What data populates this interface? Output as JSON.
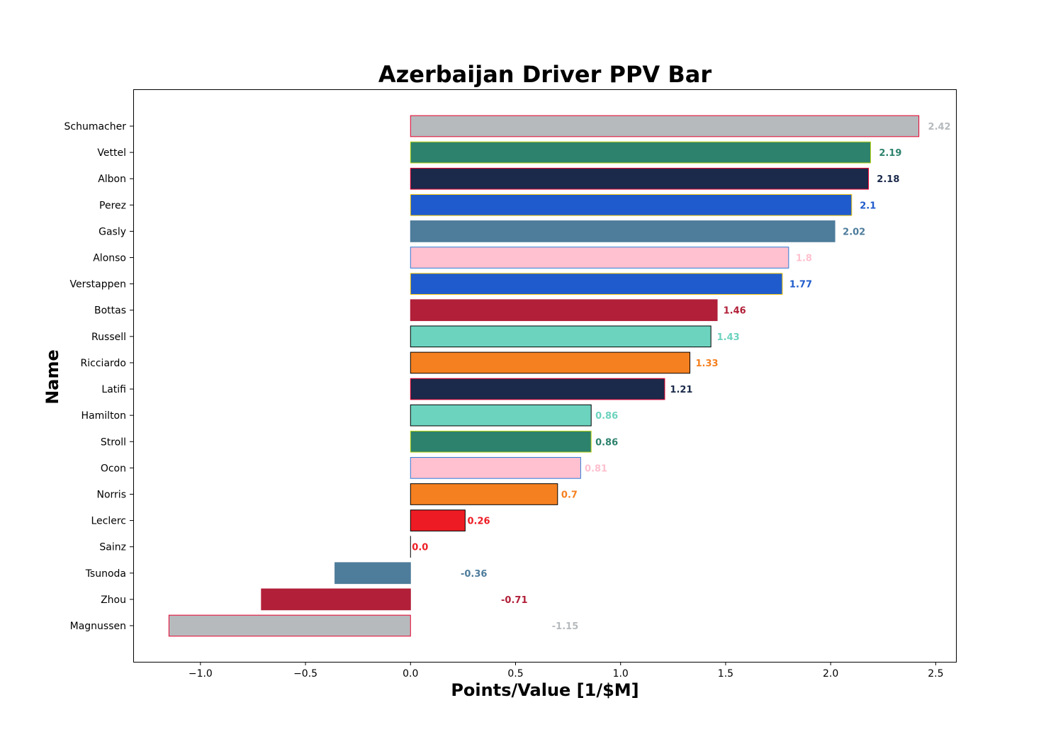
{
  "chart_data": {
    "type": "bar",
    "orientation": "horizontal",
    "title": "Azerbaijan Driver PPV Bar",
    "xlabel": "Points/Value [1/$M]",
    "ylabel": "Name",
    "xlim": [
      -1.32,
      2.6
    ],
    "xticks": [
      -1.0,
      -0.5,
      0.0,
      0.5,
      1.0,
      1.5,
      2.0,
      2.5
    ],
    "xtick_labels": [
      "−1.0",
      "−0.5",
      "0.0",
      "0.5",
      "1.0",
      "1.5",
      "2.0",
      "2.5"
    ],
    "grid": false,
    "bars": [
      {
        "name": "Schumacher",
        "value": 2.42,
        "label": "2.42",
        "fill": "#B6BABD",
        "edge": "#E8002D"
      },
      {
        "name": "Vettel",
        "value": 2.19,
        "label": "2.19",
        "fill": "#2D826D",
        "edge": "#B8D316"
      },
      {
        "name": "Albon",
        "value": 2.18,
        "label": "2.18",
        "fill": "#1B2A4B",
        "edge": "#E8002D"
      },
      {
        "name": "Perez",
        "value": 2.1,
        "label": "2.1",
        "fill": "#1F5BCC",
        "edge": "#F5C80B"
      },
      {
        "name": "Gasly",
        "value": 2.02,
        "label": "2.02",
        "fill": "#4E7C9B",
        "edge": "#4E7C9B"
      },
      {
        "name": "Alonso",
        "value": 1.8,
        "label": "1.8",
        "fill": "#FFC0CF",
        "edge": "#2E7CD6"
      },
      {
        "name": "Verstappen",
        "value": 1.77,
        "label": "1.77",
        "fill": "#1F5BCC",
        "edge": "#F5C80B"
      },
      {
        "name": "Bottas",
        "value": 1.46,
        "label": "1.46",
        "fill": "#B11F38",
        "edge": "#B11F38"
      },
      {
        "name": "Russell",
        "value": 1.43,
        "label": "1.43",
        "fill": "#6CD3BF",
        "edge": "#000000"
      },
      {
        "name": "Ricciardo",
        "value": 1.33,
        "label": "1.33",
        "fill": "#F58020",
        "edge": "#000000"
      },
      {
        "name": "Latifi",
        "value": 1.21,
        "label": "1.21",
        "fill": "#1B2A4B",
        "edge": "#E8002D"
      },
      {
        "name": "Hamilton",
        "value": 0.86,
        "label": "0.86",
        "fill": "#6CD3BF",
        "edge": "#000000"
      },
      {
        "name": "Stroll",
        "value": 0.86,
        "label": "0.86",
        "fill": "#2D826D",
        "edge": "#B8D316"
      },
      {
        "name": "Ocon",
        "value": 0.81,
        "label": "0.81",
        "fill": "#FFC0CF",
        "edge": "#2E7CD6"
      },
      {
        "name": "Norris",
        "value": 0.7,
        "label": "0.7",
        "fill": "#F58020",
        "edge": "#000000"
      },
      {
        "name": "Leclerc",
        "value": 0.26,
        "label": "0.26",
        "fill": "#ED1C24",
        "edge": "#000000"
      },
      {
        "name": "Sainz",
        "value": 0.0,
        "label": "0.0",
        "fill": "#ED1C24",
        "edge": "#000000"
      },
      {
        "name": "Tsunoda",
        "value": -0.36,
        "label": "-0.36",
        "fill": "#4E7C9B",
        "edge": "#4E7C9B"
      },
      {
        "name": "Zhou",
        "value": -0.71,
        "label": "-0.71",
        "fill": "#B11F38",
        "edge": "#B11F38"
      },
      {
        "name": "Magnussen",
        "value": -1.15,
        "label": "-1.15",
        "fill": "#B6BABD",
        "edge": "#E8002D"
      }
    ]
  }
}
